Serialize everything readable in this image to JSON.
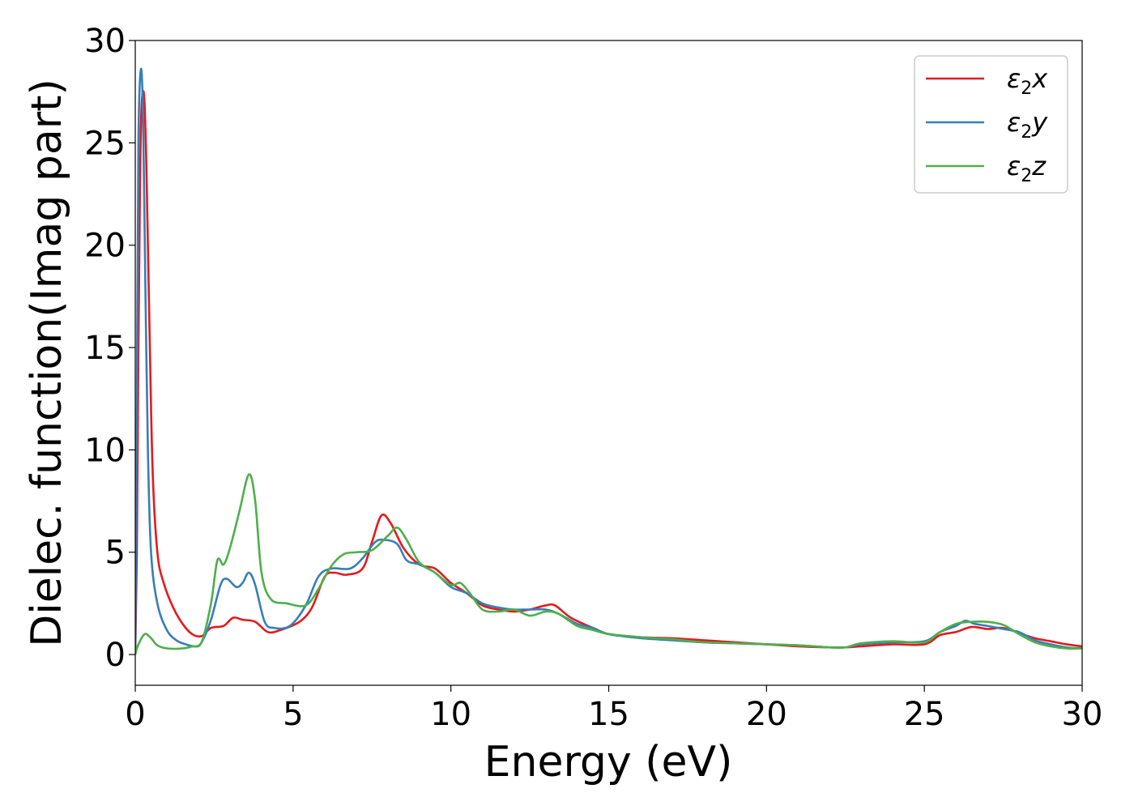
{
  "chart_data": {
    "type": "line",
    "title": "",
    "xlabel": "Energy (eV)",
    "ylabel": "Dielec. function(Imag part)",
    "xlim": [
      0,
      30
    ],
    "ylim": [
      -1.5,
      30
    ],
    "xticks": [
      0,
      5,
      10,
      15,
      20,
      25,
      30
    ],
    "xtick_labels": [
      "0",
      "5",
      "10",
      "15",
      "20",
      "25",
      "30"
    ],
    "yticks": [
      0,
      5,
      10,
      15,
      20,
      25,
      30
    ],
    "ytick_labels": [
      "0",
      "5",
      "10",
      "15",
      "20",
      "25",
      "30"
    ],
    "grid": false,
    "legend_position": "top-right",
    "series": [
      {
        "name": "ε₂x",
        "legend_main": "ε",
        "legend_sub": "2",
        "legend_suffix": "x",
        "color": "#e41a1c",
        "points": [
          [
            0,
            0
          ],
          [
            0.05,
            5
          ],
          [
            0.1,
            15
          ],
          [
            0.15,
            23
          ],
          [
            0.2,
            26.8
          ],
          [
            0.28,
            27.3
          ],
          [
            0.35,
            24
          ],
          [
            0.45,
            16
          ],
          [
            0.55,
            9
          ],
          [
            0.7,
            5
          ],
          [
            0.9,
            3.5
          ],
          [
            1.2,
            2.3
          ],
          [
            1.5,
            1.5
          ],
          [
            1.8,
            1.0
          ],
          [
            2.1,
            0.9
          ],
          [
            2.4,
            1.3
          ],
          [
            2.8,
            1.4
          ],
          [
            3.1,
            1.8
          ],
          [
            3.4,
            1.7
          ],
          [
            3.8,
            1.6
          ],
          [
            4.2,
            1.1
          ],
          [
            4.6,
            1.2
          ],
          [
            5.2,
            1.6
          ],
          [
            5.6,
            2.3
          ],
          [
            6.0,
            3.8
          ],
          [
            6.3,
            4.0
          ],
          [
            6.7,
            3.9
          ],
          [
            7.2,
            4.2
          ],
          [
            7.5,
            5.5
          ],
          [
            7.8,
            6.8
          ],
          [
            8.1,
            6.4
          ],
          [
            8.5,
            5.2
          ],
          [
            9.0,
            4.4
          ],
          [
            9.5,
            4.2
          ],
          [
            10.0,
            3.5
          ],
          [
            10.5,
            3.0
          ],
          [
            11.0,
            2.4
          ],
          [
            11.5,
            2.2
          ],
          [
            12.0,
            2.1
          ],
          [
            12.5,
            2.2
          ],
          [
            13.0,
            2.4
          ],
          [
            13.3,
            2.4
          ],
          [
            13.8,
            1.8
          ],
          [
            14.5,
            1.3
          ],
          [
            15.0,
            1.0
          ],
          [
            16.0,
            0.85
          ],
          [
            17.0,
            0.8
          ],
          [
            18.0,
            0.7
          ],
          [
            19.0,
            0.6
          ],
          [
            20.0,
            0.5
          ],
          [
            21.0,
            0.4
          ],
          [
            22.0,
            0.35
          ],
          [
            22.5,
            0.35
          ],
          [
            23.0,
            0.4
          ],
          [
            24.0,
            0.5
          ],
          [
            25.0,
            0.5
          ],
          [
            25.5,
            0.95
          ],
          [
            26.0,
            1.1
          ],
          [
            26.5,
            1.35
          ],
          [
            27.0,
            1.25
          ],
          [
            27.5,
            1.3
          ],
          [
            28.0,
            1.05
          ],
          [
            28.5,
            0.8
          ],
          [
            29.0,
            0.65
          ],
          [
            29.5,
            0.5
          ],
          [
            30.0,
            0.4
          ]
        ]
      },
      {
        "name": "ε₂y",
        "legend_main": "ε",
        "legend_sub": "2",
        "legend_suffix": "y",
        "color": "#377eb8",
        "points": [
          [
            0,
            0
          ],
          [
            0.05,
            12
          ],
          [
            0.1,
            25
          ],
          [
            0.18,
            28.6
          ],
          [
            0.25,
            26
          ],
          [
            0.32,
            18
          ],
          [
            0.4,
            10
          ],
          [
            0.5,
            5
          ],
          [
            0.7,
            2.5
          ],
          [
            1.0,
            1.2
          ],
          [
            1.3,
            0.7
          ],
          [
            1.6,
            0.5
          ],
          [
            1.9,
            0.4
          ],
          [
            2.1,
            0.6
          ],
          [
            2.4,
            1.7
          ],
          [
            2.7,
            3.4
          ],
          [
            2.9,
            3.7
          ],
          [
            3.2,
            3.3
          ],
          [
            3.4,
            3.5
          ],
          [
            3.6,
            4.0
          ],
          [
            3.8,
            3.4
          ],
          [
            4.1,
            1.6
          ],
          [
            4.4,
            1.3
          ],
          [
            4.9,
            1.4
          ],
          [
            5.4,
            2.4
          ],
          [
            5.8,
            3.8
          ],
          [
            6.2,
            4.2
          ],
          [
            6.8,
            4.2
          ],
          [
            7.2,
            4.7
          ],
          [
            7.6,
            5.5
          ],
          [
            7.9,
            5.6
          ],
          [
            8.3,
            5.4
          ],
          [
            8.6,
            4.6
          ],
          [
            9.0,
            4.4
          ],
          [
            9.5,
            4.0
          ],
          [
            10.0,
            3.3
          ],
          [
            10.5,
            3.0
          ],
          [
            11.0,
            2.5
          ],
          [
            11.5,
            2.3
          ],
          [
            12.0,
            2.2
          ],
          [
            12.5,
            2.2
          ],
          [
            13.0,
            2.2
          ],
          [
            13.4,
            2.0
          ],
          [
            14.0,
            1.5
          ],
          [
            14.5,
            1.3
          ],
          [
            15.0,
            1.0
          ],
          [
            16.0,
            0.8
          ],
          [
            17.0,
            0.7
          ],
          [
            18.0,
            0.6
          ],
          [
            19.0,
            0.55
          ],
          [
            20.0,
            0.5
          ],
          [
            21.0,
            0.45
          ],
          [
            22.0,
            0.35
          ],
          [
            22.5,
            0.35
          ],
          [
            23.0,
            0.5
          ],
          [
            24.0,
            0.6
          ],
          [
            25.0,
            0.65
          ],
          [
            25.5,
            1.1
          ],
          [
            26.0,
            1.4
          ],
          [
            26.3,
            1.65
          ],
          [
            26.6,
            1.5
          ],
          [
            27.0,
            1.4
          ],
          [
            27.5,
            1.25
          ],
          [
            28.0,
            1.1
          ],
          [
            28.5,
            0.7
          ],
          [
            29.0,
            0.5
          ],
          [
            29.5,
            0.35
          ],
          [
            30.0,
            0.3
          ]
        ]
      },
      {
        "name": "ε₂z",
        "legend_main": "ε",
        "legend_sub": "2",
        "legend_suffix": "z",
        "color": "#4daf4a",
        "points": [
          [
            0,
            0
          ],
          [
            0.1,
            0.5
          ],
          [
            0.3,
            1.0
          ],
          [
            0.5,
            0.8
          ],
          [
            0.7,
            0.45
          ],
          [
            1.0,
            0.3
          ],
          [
            1.5,
            0.3
          ],
          [
            1.8,
            0.4
          ],
          [
            2.1,
            0.6
          ],
          [
            2.4,
            2.5
          ],
          [
            2.6,
            4.6
          ],
          [
            2.8,
            4.4
          ],
          [
            3.0,
            5.2
          ],
          [
            3.3,
            7.0
          ],
          [
            3.6,
            8.8
          ],
          [
            3.8,
            7.5
          ],
          [
            4.0,
            4.0
          ],
          [
            4.3,
            2.7
          ],
          [
            4.8,
            2.5
          ],
          [
            5.4,
            2.4
          ],
          [
            5.8,
            3.2
          ],
          [
            6.2,
            4.3
          ],
          [
            6.6,
            4.9
          ],
          [
            7.0,
            5.0
          ],
          [
            7.5,
            5.1
          ],
          [
            8.0,
            5.8
          ],
          [
            8.3,
            6.2
          ],
          [
            8.6,
            5.6
          ],
          [
            9.0,
            4.5
          ],
          [
            9.5,
            4.0
          ],
          [
            10.0,
            3.4
          ],
          [
            10.3,
            3.5
          ],
          [
            10.6,
            3.0
          ],
          [
            11.0,
            2.2
          ],
          [
            11.5,
            2.1
          ],
          [
            12.0,
            2.2
          ],
          [
            12.5,
            1.9
          ],
          [
            13.0,
            2.1
          ],
          [
            13.4,
            2.0
          ],
          [
            14.0,
            1.4
          ],
          [
            14.5,
            1.2
          ],
          [
            15.0,
            1.0
          ],
          [
            16.0,
            0.85
          ],
          [
            17.0,
            0.75
          ],
          [
            18.0,
            0.6
          ],
          [
            19.0,
            0.55
          ],
          [
            20.0,
            0.5
          ],
          [
            21.0,
            0.45
          ],
          [
            22.0,
            0.35
          ],
          [
            22.5,
            0.35
          ],
          [
            23.0,
            0.55
          ],
          [
            24.0,
            0.65
          ],
          [
            25.0,
            0.6
          ],
          [
            25.5,
            1.1
          ],
          [
            26.0,
            1.5
          ],
          [
            26.5,
            1.6
          ],
          [
            27.0,
            1.6
          ],
          [
            27.5,
            1.45
          ],
          [
            28.0,
            1.0
          ],
          [
            28.5,
            0.6
          ],
          [
            29.0,
            0.4
          ],
          [
            29.5,
            0.3
          ],
          [
            30.0,
            0.3
          ]
        ]
      }
    ]
  }
}
